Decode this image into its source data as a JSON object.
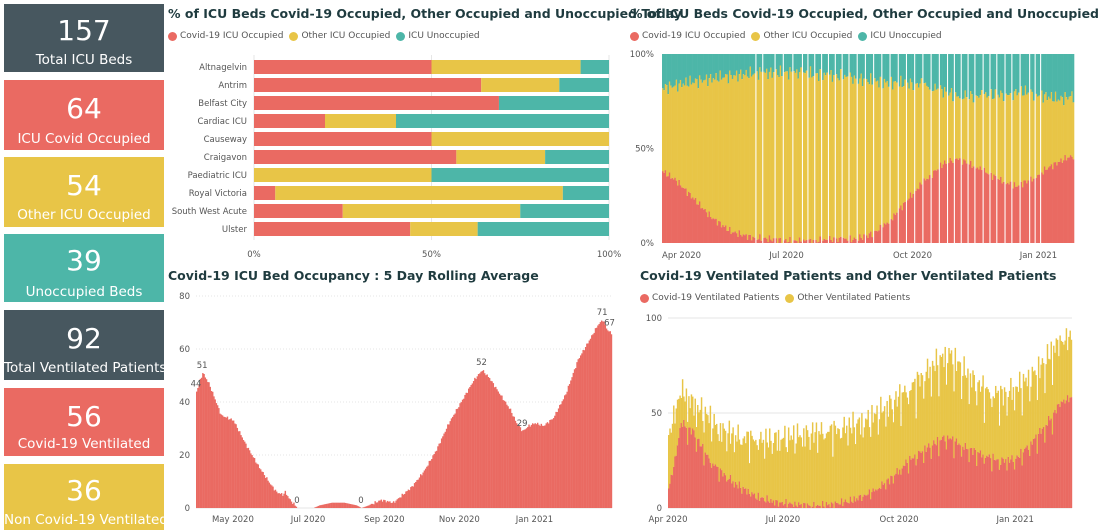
{
  "colors": {
    "covid": "#ea6a62",
    "other": "#e8c547",
    "unocc": "#4db6a8",
    "dark": "#47575f",
    "grid": "#e6e6e6"
  },
  "kpis": [
    {
      "value": "157",
      "label": "Total ICU Beds",
      "color": "#47575f",
      "top": 4,
      "height": 68,
      "numTop": 12,
      "lblTop": 48
    },
    {
      "value": "64",
      "label": "ICU Covid Occupied",
      "color": "#ea6a62",
      "top": 80,
      "height": 70,
      "numTop": 14,
      "lblTop": 51
    },
    {
      "value": "54",
      "label": "Other ICU Occupied",
      "color": "#e8c547",
      "top": 157,
      "height": 70,
      "numTop": 14,
      "lblTop": 50
    },
    {
      "value": "39",
      "label": "Unoccupied Beds",
      "color": "#4db6a8",
      "top": 234,
      "height": 68,
      "numTop": 12,
      "lblTop": 50
    },
    {
      "value": "92",
      "label": "Total Ventilated Patients",
      "color": "#47575f",
      "top": 310,
      "height": 70,
      "numTop": 14,
      "lblTop": 50
    },
    {
      "value": "56",
      "label": "Covid-19 Ventilated",
      "color": "#ea6a62",
      "top": 388,
      "height": 68,
      "numTop": 14,
      "lblTop": 48
    },
    {
      "value": "36",
      "label": "Non Covid-19 Ventilated",
      "color": "#e8c547",
      "top": 464,
      "height": 66,
      "numTop": 12,
      "lblTop": 48
    }
  ],
  "titles": {
    "today": "% of ICU Beds Covid-19 Occupied, Other Occupied and Unoccupied Today",
    "history": "% of ICU Beds Covid-19 Occupied, Other Occupied and Unoccupied",
    "rolling": "Covid-19 ICU Bed Occupancy : 5 Day Rolling Average",
    "vent": "Covid-19 Ventilated Patients and Other Ventilated Patients"
  },
  "legends": {
    "beds": [
      "Covid-19 ICU Occupied",
      "Other ICU Occupied",
      "ICU Unoccupied"
    ],
    "vent": [
      "Covid-19 Ventilated Patients",
      "Other Ventilated Patients"
    ]
  },
  "chart_data": [
    {
      "type": "bar",
      "title": "% of ICU Beds Covid-19 Occupied, Other Occupied and Unoccupied Today",
      "orientation": "horizontal-stacked-100",
      "categories": [
        "Altnagelvin",
        "Antrim",
        "Belfast City",
        "Cardiac ICU",
        "Causeway",
        "Craigavon",
        "Paediatric ICU",
        "Royal Victoria",
        "South West Acute",
        "Ulster"
      ],
      "series": [
        {
          "name": "Covid-19 ICU Occupied",
          "values": [
            50,
            64,
            69,
            20,
            50,
            57,
            0,
            6,
            25,
            44
          ]
        },
        {
          "name": "Other ICU Occupied",
          "values": [
            42,
            22,
            0,
            20,
            50,
            25,
            50,
            81,
            50,
            19
          ]
        },
        {
          "name": "ICU Unoccupied",
          "values": [
            8,
            14,
            31,
            60,
            0,
            18,
            50,
            13,
            25,
            37
          ]
        }
      ],
      "xticks": [
        "0%",
        "50%",
        "100%"
      ],
      "legend": "top-left"
    },
    {
      "type": "bar",
      "title": "% of ICU Beds Covid-19 Occupied, Other Occupied and Unoccupied",
      "orientation": "vertical-stacked-100-daily",
      "keypoints_covid_pct": [
        [
          0,
          38
        ],
        [
          10,
          33
        ],
        [
          22,
          24
        ],
        [
          35,
          14
        ],
        [
          50,
          6
        ],
        [
          65,
          3
        ],
        [
          80,
          2
        ],
        [
          95,
          1
        ],
        [
          110,
          1
        ],
        [
          125,
          2
        ],
        [
          140,
          2
        ],
        [
          150,
          4
        ],
        [
          160,
          8
        ],
        [
          170,
          15
        ],
        [
          180,
          24
        ],
        [
          190,
          32
        ],
        [
          205,
          42
        ],
        [
          215,
          45
        ],
        [
          230,
          40
        ],
        [
          245,
          34
        ],
        [
          258,
          30
        ],
        [
          270,
          34
        ],
        [
          282,
          40
        ],
        [
          295,
          45
        ],
        [
          300,
          46
        ]
      ],
      "keypoints_unocc_pct": [
        [
          0,
          18
        ],
        [
          20,
          15
        ],
        [
          45,
          12
        ],
        [
          70,
          10
        ],
        [
          100,
          10
        ],
        [
          130,
          12
        ],
        [
          160,
          15
        ],
        [
          190,
          16
        ],
        [
          215,
          22
        ],
        [
          240,
          22
        ],
        [
          265,
          20
        ],
        [
          290,
          24
        ],
        [
          300,
          22
        ]
      ],
      "gap_days": [
        68,
        73,
        82,
        88,
        95,
        102,
        106,
        111,
        116,
        121,
        126,
        131,
        136,
        142,
        148,
        154,
        160,
        166,
        172,
        178,
        184,
        190,
        196,
        202,
        208,
        213,
        218,
        223,
        228,
        234,
        239,
        244,
        250,
        255,
        261,
        268,
        272,
        276
      ],
      "yticks": [
        "0%",
        "50%",
        "100%"
      ],
      "xticks": [
        {
          "label": "Apr 2020",
          "day": 0
        },
        {
          "label": "Jul 2020",
          "day": 91
        },
        {
          "label": "Oct 2020",
          "day": 183
        },
        {
          "label": "Jan 2021",
          "day": 275
        }
      ],
      "days": 301
    },
    {
      "type": "area",
      "title": "Covid-19 ICU Bed Occupancy : 5 Day Rolling Average",
      "keypoints": [
        [
          0,
          44
        ],
        [
          5,
          51
        ],
        [
          10,
          47
        ],
        [
          20,
          35
        ],
        [
          30,
          33
        ],
        [
          40,
          24
        ],
        [
          50,
          16
        ],
        [
          60,
          9
        ],
        [
          65,
          6
        ],
        [
          70,
          5
        ],
        [
          72,
          6
        ],
        [
          76,
          3
        ],
        [
          82,
          0
        ],
        [
          95,
          0
        ],
        [
          100,
          1
        ],
        [
          110,
          2
        ],
        [
          120,
          2
        ],
        [
          130,
          1
        ],
        [
          134,
          0
        ],
        [
          140,
          1
        ],
        [
          150,
          3
        ],
        [
          160,
          2
        ],
        [
          165,
          4
        ],
        [
          175,
          8
        ],
        [
          185,
          14
        ],
        [
          195,
          22
        ],
        [
          205,
          32
        ],
        [
          215,
          40
        ],
        [
          225,
          48
        ],
        [
          232,
          52
        ],
        [
          238,
          49
        ],
        [
          245,
          44
        ],
        [
          255,
          37
        ],
        [
          260,
          32
        ],
        [
          265,
          29
        ],
        [
          270,
          31
        ],
        [
          275,
          32
        ],
        [
          282,
          31
        ],
        [
          290,
          34
        ],
        [
          300,
          43
        ],
        [
          310,
          56
        ],
        [
          320,
          64
        ],
        [
          326,
          69
        ],
        [
          330,
          71
        ],
        [
          334,
          67
        ],
        [
          337,
          66
        ]
      ],
      "labels": [
        {
          "day": 0,
          "value": 44,
          "text": "44"
        },
        {
          "day": 5,
          "value": 51,
          "text": "51"
        },
        {
          "day": 82,
          "value": 0,
          "text": "0"
        },
        {
          "day": 134,
          "value": 0,
          "text": "0"
        },
        {
          "day": 232,
          "value": 52,
          "text": "52"
        },
        {
          "day": 265,
          "value": 29,
          "text": "29"
        },
        {
          "day": 330,
          "value": 71,
          "text": "71"
        },
        {
          "day": 336,
          "value": 67,
          "text": "67"
        }
      ],
      "yticks": [
        0,
        20,
        40,
        60,
        80
      ],
      "ylim": [
        0,
        80
      ],
      "xticks": [
        {
          "label": "May 2020",
          "day": 30
        },
        {
          "label": "Jul 2020",
          "day": 91
        },
        {
          "label": "Sep 2020",
          "day": 153
        },
        {
          "label": "Nov 2020",
          "day": 214
        },
        {
          "label": "Jan 2021",
          "day": 275
        }
      ],
      "days": 338
    },
    {
      "type": "bar",
      "title": "Covid-19 Ventilated Patients and Other Ventilated Patients",
      "orientation": "vertical-stacked-daily",
      "keypoints_covid": [
        [
          0,
          10
        ],
        [
          5,
          25
        ],
        [
          10,
          45
        ],
        [
          20,
          40
        ],
        [
          30,
          28
        ],
        [
          40,
          20
        ],
        [
          55,
          12
        ],
        [
          70,
          6
        ],
        [
          85,
          3
        ],
        [
          100,
          2
        ],
        [
          115,
          1
        ],
        [
          130,
          2
        ],
        [
          145,
          4
        ],
        [
          160,
          8
        ],
        [
          175,
          15
        ],
        [
          190,
          25
        ],
        [
          205,
          32
        ],
        [
          220,
          38
        ],
        [
          235,
          32
        ],
        [
          250,
          28
        ],
        [
          262,
          25
        ],
        [
          275,
          26
        ],
        [
          288,
          35
        ],
        [
          300,
          45
        ],
        [
          310,
          55
        ],
        [
          318,
          58
        ]
      ],
      "keypoints_total": [
        [
          0,
          38
        ],
        [
          10,
          62
        ],
        [
          20,
          55
        ],
        [
          30,
          50
        ],
        [
          40,
          42
        ],
        [
          55,
          38
        ],
        [
          75,
          36
        ],
        [
          95,
          38
        ],
        [
          115,
          40
        ],
        [
          135,
          42
        ],
        [
          155,
          46
        ],
        [
          175,
          55
        ],
        [
          195,
          66
        ],
        [
          210,
          76
        ],
        [
          222,
          82
        ],
        [
          238,
          70
        ],
        [
          252,
          62
        ],
        [
          265,
          60
        ],
        [
          280,
          66
        ],
        [
          295,
          75
        ],
        [
          305,
          85
        ],
        [
          318,
          90
        ]
      ],
      "gap_days": [
        15,
        22,
        28,
        34,
        40,
        46,
        52,
        58,
        64,
        70,
        76,
        82,
        88,
        94,
        100,
        106,
        112,
        118,
        124,
        130,
        136,
        142,
        148,
        154,
        160,
        166,
        172,
        178,
        184,
        190,
        196,
        202,
        208,
        214,
        220,
        226,
        232,
        238,
        244,
        250,
        256,
        262,
        268,
        274,
        280,
        286,
        292,
        298,
        304
      ],
      "yticks": [
        0,
        50,
        100
      ],
      "ylim": [
        0,
        100
      ],
      "xticks": [
        {
          "label": "Apr 2020",
          "day": 0
        },
        {
          "label": "Jul 2020",
          "day": 91
        },
        {
          "label": "Oct 2020",
          "day": 183
        },
        {
          "label": "Jan 2021",
          "day": 275
        }
      ],
      "days": 320
    }
  ]
}
